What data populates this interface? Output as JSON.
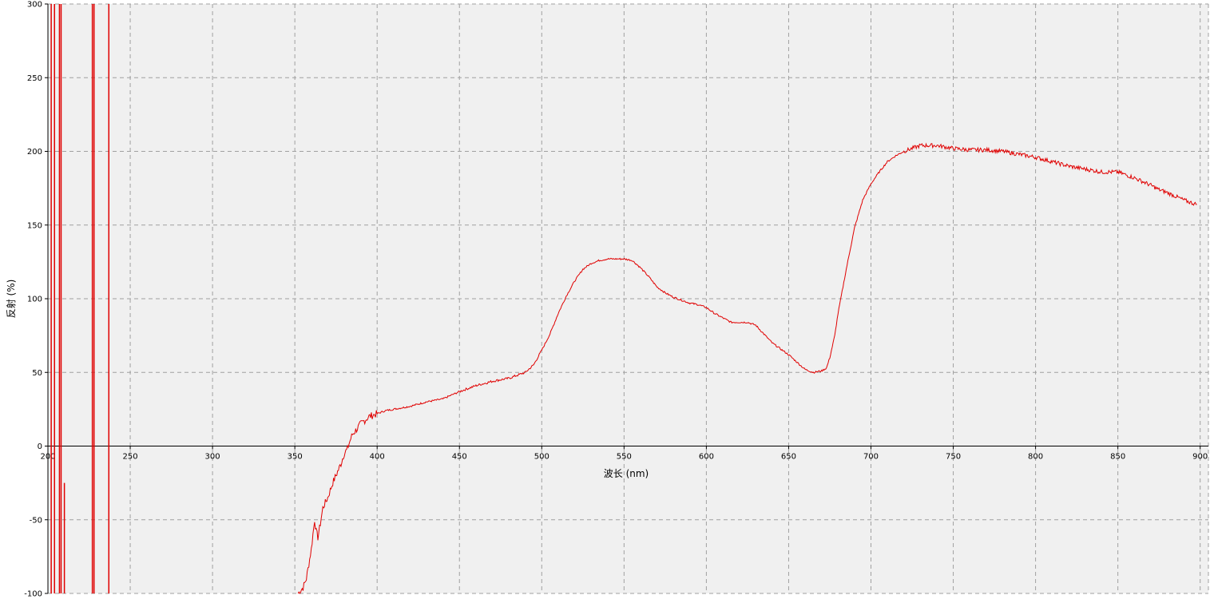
{
  "chart_data": {
    "type": "line",
    "title": "",
    "xlabel": "波长 (nm)",
    "ylabel": "反射 (%)",
    "xlim": [
      200,
      905
    ],
    "ylim": [
      -100,
      300
    ],
    "xticks": [
      200,
      250,
      300,
      350,
      400,
      450,
      500,
      550,
      600,
      650,
      700,
      750,
      800,
      850,
      900
    ],
    "yticks": [
      300,
      250,
      200,
      150,
      100,
      50,
      0,
      -50,
      -100
    ],
    "xtick_labels": [
      "200",
      "250",
      "300",
      "350",
      "400",
      "450",
      "500",
      "550",
      "600",
      "650",
      "700",
      "750",
      "800",
      "850",
      "900"
    ],
    "ytick_labels": [
      "300",
      "250",
      "200",
      "150",
      "100",
      "50",
      "0",
      "-50",
      "-100"
    ],
    "grid": true,
    "legend": false,
    "colors": {
      "background": "#f0f0f0",
      "grid": "#a0a0a0",
      "series": "#e00000",
      "axis": "#000000"
    },
    "spikes": [
      {
        "x": 202,
        "y_top": 300,
        "y_bottom": -100
      },
      {
        "x": 204,
        "y_top": 300,
        "y_bottom": -100
      },
      {
        "x": 207,
        "y_top": 300,
        "y_bottom": -100
      },
      {
        "x": 208,
        "y_top": 300,
        "y_bottom": -100
      },
      {
        "x": 210,
        "y_top": -25,
        "y_bottom": -100
      },
      {
        "x": 227,
        "y_top": 300,
        "y_bottom": -100
      },
      {
        "x": 228,
        "y_top": 300,
        "y_bottom": -100
      },
      {
        "x": 237,
        "y_top": 300,
        "y_bottom": -100
      }
    ],
    "series": [
      {
        "x": [
          352,
          355,
          357,
          360,
          362,
          363,
          364,
          365,
          367,
          370,
          373,
          375,
          378,
          380,
          382,
          383,
          385,
          388,
          390,
          393,
          395,
          400,
          405,
          410,
          420,
          430,
          440,
          450,
          460,
          470,
          480,
          490,
          495,
          500,
          505,
          510,
          515,
          520,
          525,
          530,
          535,
          540,
          545,
          550,
          555,
          560,
          565,
          570,
          575,
          580,
          585,
          590,
          595,
          600,
          605,
          610,
          615,
          620,
          625,
          630,
          635,
          640,
          645,
          650,
          655,
          660,
          665,
          670,
          673,
          675,
          678,
          680,
          685,
          690,
          695,
          700,
          705,
          710,
          715,
          720,
          725,
          730,
          740,
          750,
          760,
          770,
          780,
          790,
          800,
          810,
          820,
          830,
          840,
          850,
          860,
          870,
          875,
          880,
          890,
          895,
          898
        ],
        "y": [
          -100,
          -96,
          -90,
          -70,
          -50,
          -58,
          -62,
          -56,
          -42,
          -35,
          -25,
          -20,
          -12,
          -5,
          -2,
          2,
          8,
          12,
          15,
          18,
          20,
          22,
          24,
          25,
          27,
          30,
          32,
          37,
          41,
          44,
          46,
          50,
          55,
          65,
          76,
          90,
          102,
          112,
          120,
          124,
          126,
          127,
          127,
          127,
          126,
          121,
          115,
          108,
          104,
          101,
          99,
          97,
          96,
          94,
          90,
          87,
          84,
          84,
          84,
          82,
          76,
          70,
          66,
          62,
          57,
          52,
          50,
          51,
          53,
          60,
          75,
          90,
          120,
          148,
          167,
          178,
          186,
          193,
          197,
          200,
          202,
          204,
          204,
          202,
          201,
          201,
          200,
          198,
          196,
          193,
          190,
          188,
          186,
          186,
          182,
          177,
          174,
          172,
          167,
          165,
          164
        ]
      }
    ]
  }
}
